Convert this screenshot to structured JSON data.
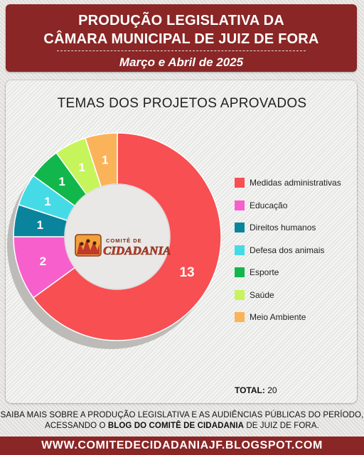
{
  "header": {
    "line1": "PRODUÇÃO LEGISLATIVA DA",
    "line2": "CÂMARA MUNICIPAL DE JUIZ DE FORA",
    "subtitle": "Março e Abril de 2025"
  },
  "logo": {
    "text_top": "COMITÊ DE",
    "text_main": "CIDADANIA"
  },
  "total": {
    "label": "TOTAL:",
    "value": "20"
  },
  "footer": {
    "line1": "SAIBA MAIS SOBRE A PRODUÇÃO LEGISLATIVA E AS AUDIÊNCIAS PÚBLICAS DO PERÍODO,",
    "line2_prefix": "ACESSANDO O ",
    "line2_bold": "BLOG DO COMITÊ DE CIDADANIA",
    "line2_suffix": " DE JUIZ DE FORA.",
    "url": "WWW.COMITEDECIDADANIAJF.BLOGSPOT.COM"
  },
  "chart_data": {
    "type": "pie",
    "style": "donut",
    "title": "TEMAS DOS PROJETOS APROVADOS",
    "legend_position": "right",
    "categories": [
      "Medidas administrativas",
      "Educação",
      "Direitos humanos",
      "Defesa dos animais",
      "Esporte",
      "Saúde",
      "Meio Ambiente"
    ],
    "values": [
      13,
      2,
      1,
      1,
      1,
      1,
      1
    ],
    "colors": [
      "#f74f52",
      "#f75fcc",
      "#0a849c",
      "#45dbe6",
      "#12b74b",
      "#c5f55a",
      "#fbb35a"
    ]
  }
}
